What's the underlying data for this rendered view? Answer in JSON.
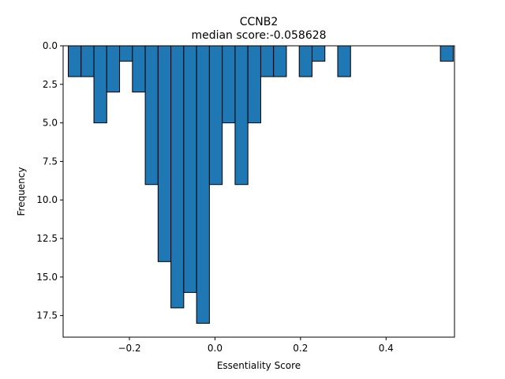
{
  "chart_data": {
    "type": "bar",
    "title": "CCNB2",
    "subtitle": "median score:-0.058628",
    "xlabel": "Essentiality Score",
    "ylabel": "Frequency",
    "xlim": [
      -0.355,
      0.56
    ],
    "ylim": [
      18.9,
      0
    ],
    "y_inverted": true,
    "x_ticks": [
      -0.2,
      0.0,
      0.2,
      0.4
    ],
    "x_tick_labels": [
      "−0.2",
      "0.0",
      "0.2",
      "0.4"
    ],
    "y_ticks": [
      0.0,
      2.5,
      5.0,
      7.5,
      10.0,
      12.5,
      15.0,
      17.5
    ],
    "y_tick_labels": [
      "0.0",
      "2.5",
      "5.0",
      "7.5",
      "10.0",
      "12.5",
      "15.0",
      "17.5"
    ],
    "grid": false,
    "bin_edges": [
      -0.343,
      -0.313,
      -0.283,
      -0.253,
      -0.223,
      -0.193,
      -0.163,
      -0.133,
      -0.103,
      -0.073,
      -0.043,
      -0.013,
      0.017,
      0.047,
      0.077,
      0.107,
      0.137,
      0.167,
      0.197,
      0.227,
      0.257,
      0.287,
      0.317,
      0.347,
      0.377,
      0.407,
      0.437,
      0.467,
      0.497,
      0.527,
      0.557
    ],
    "values": [
      2,
      2,
      5,
      3,
      1,
      3,
      9,
      14,
      17,
      16,
      18,
      9,
      5,
      9,
      5,
      2,
      2,
      0,
      2,
      1,
      0,
      2,
      0,
      0,
      0,
      0,
      0,
      0,
      0,
      1
    ],
    "colors": {
      "bar_fill": "#1f77b4",
      "bar_edge": "#000000"
    }
  }
}
